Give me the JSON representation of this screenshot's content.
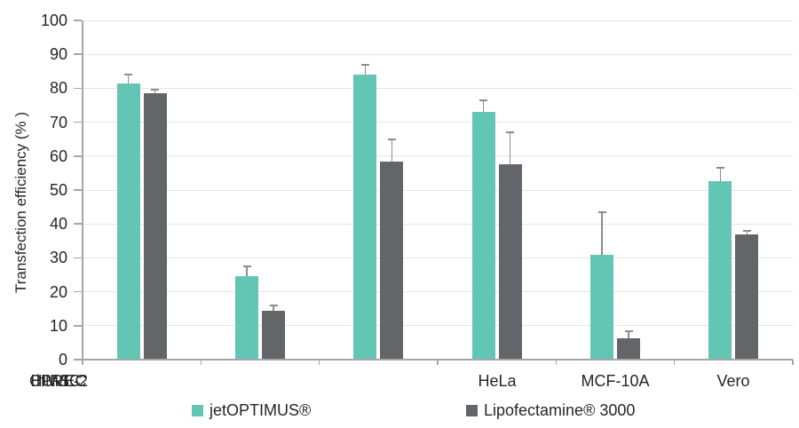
{
  "chart_data": {
    "type": "bar",
    "title": "",
    "xlabel": "",
    "ylabel": "Transfection efficiency (% )",
    "ylim": [
      0,
      100
    ],
    "ytick_step": 10,
    "grid": true,
    "legend_position": "bottom",
    "categories": [
      "HeLa",
      "MCF-10A",
      "Vero",
      "HUVEC",
      "hMSC",
      "CPRE-2"
    ],
    "series": [
      {
        "name": "jetOPTIMUS®",
        "color": "#63C6B5",
        "values": [
          81.5,
          24.5,
          84,
          73,
          31,
          52.5
        ],
        "error_up": [
          2.5,
          3,
          3,
          3.5,
          12.5,
          4
        ]
      },
      {
        "name": "Lipofectamine® 3000",
        "color": "#636569",
        "values": [
          78.5,
          14.5,
          58.5,
          57.5,
          6.3,
          37
        ],
        "error_up": [
          1.2,
          1.5,
          6.5,
          9.5,
          2,
          1
        ]
      }
    ]
  },
  "style": {
    "axis_color": "#A6A6A6",
    "grid_color": "#E4E4E4",
    "error_bar_color": "#8C8C8C",
    "text_color": "#262626",
    "background": "#FFFFFF"
  }
}
